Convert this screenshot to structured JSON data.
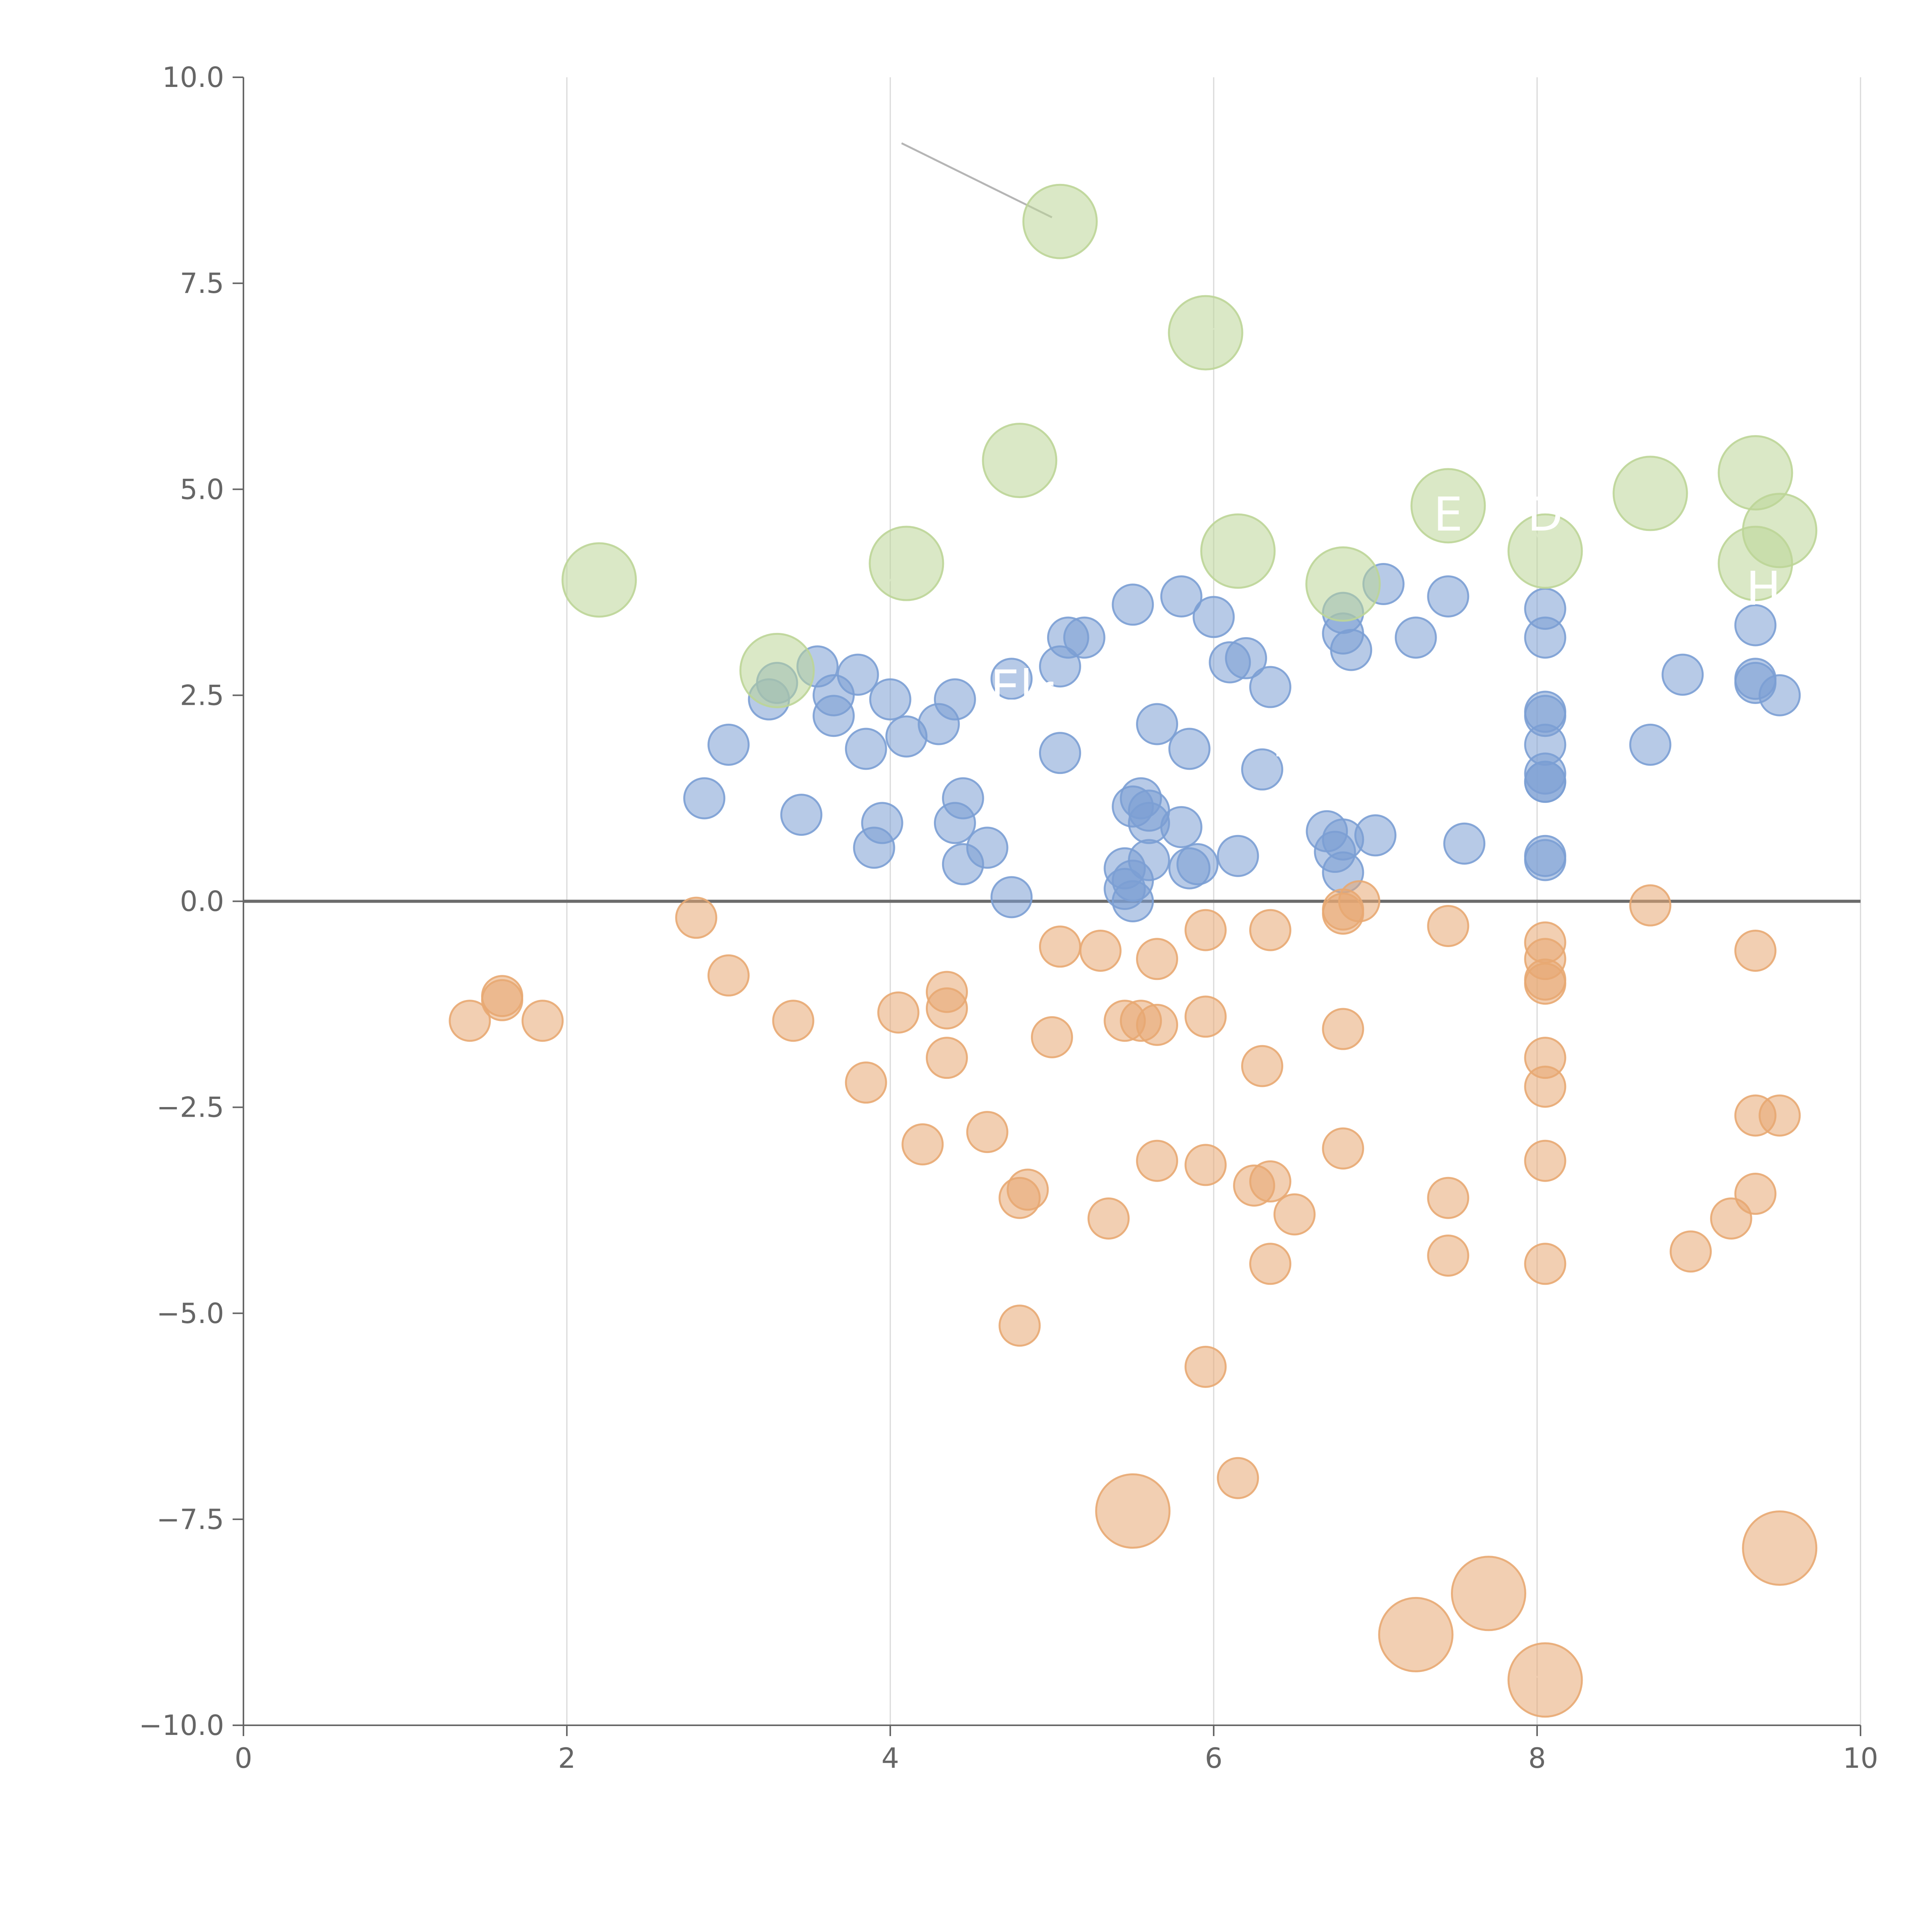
{
  "chart_data": {
    "type": "scatter",
    "title": "",
    "xlabel": "",
    "ylabel": "",
    "xlim": [
      0,
      10
    ],
    "ylim": [
      -10,
      10
    ],
    "x_ticks": [
      "0",
      "2",
      "4",
      "6",
      "8",
      "10"
    ],
    "y_ticks": [
      "−10.0",
      "−7.5",
      "−5.0",
      "−2.5",
      "0.0",
      "2.5",
      "5.0",
      "7.5",
      "10.0"
    ],
    "x_tick_values": [
      0,
      2,
      4,
      6,
      8,
      10
    ],
    "y_tick_values": [
      -10,
      -7.5,
      -5,
      -2.5,
      0,
      2.5,
      5,
      7.5,
      10
    ],
    "vertical_grid": true,
    "horizontal_grid": false,
    "zero_line": true,
    "series": [
      {
        "color": "#7b9fd4",
        "size": "small",
        "points": [
          [
            2.85,
            1.25
          ],
          [
            3.0,
            1.9
          ],
          [
            3.25,
            2.45
          ],
          [
            3.3,
            2.65
          ],
          [
            3.45,
            1.05
          ],
          [
            3.55,
            2.85
          ],
          [
            3.65,
            2.5
          ],
          [
            3.65,
            2.25
          ],
          [
            3.8,
            2.75
          ],
          [
            3.85,
            1.85
          ],
          [
            3.9,
            0.65
          ],
          [
            3.95,
            0.95
          ],
          [
            4.0,
            2.45
          ],
          [
            4.1,
            2.0
          ],
          [
            4.3,
            2.15
          ],
          [
            4.4,
            2.45
          ],
          [
            4.4,
            0.95
          ],
          [
            4.45,
            1.25
          ],
          [
            4.45,
            0.45
          ],
          [
            4.6,
            0.65
          ],
          [
            4.75,
            0.05
          ],
          [
            4.75,
            2.7
          ],
          [
            5.05,
            2.85
          ],
          [
            5.05,
            1.8
          ],
          [
            5.1,
            3.2
          ],
          [
            5.2,
            3.2
          ],
          [
            5.5,
            3.6
          ],
          [
            5.5,
            1.15
          ],
          [
            5.5,
            0.25
          ],
          [
            5.55,
            1.25
          ],
          [
            5.45,
            0.4
          ],
          [
            5.45,
            0.15
          ],
          [
            5.5,
            0.0
          ],
          [
            5.6,
            0.5
          ],
          [
            5.6,
            1.1
          ],
          [
            5.6,
            0.95
          ],
          [
            5.65,
            2.15
          ],
          [
            5.8,
            3.7
          ],
          [
            5.8,
            0.9
          ],
          [
            5.85,
            1.85
          ],
          [
            5.85,
            0.4
          ],
          [
            5.9,
            0.45
          ],
          [
            6.0,
            3.45
          ],
          [
            6.1,
            2.9
          ],
          [
            6.2,
            2.95
          ],
          [
            6.15,
            0.55
          ],
          [
            6.3,
            1.6
          ],
          [
            6.35,
            2.6
          ],
          [
            6.7,
            0.85
          ],
          [
            6.75,
            0.6
          ],
          [
            6.8,
            0.75
          ],
          [
            6.8,
            0.35
          ],
          [
            6.8,
            3.5
          ],
          [
            6.8,
            3.25
          ],
          [
            6.85,
            3.05
          ],
          [
            7.0,
            0.8
          ],
          [
            7.05,
            3.85
          ],
          [
            7.25,
            3.2
          ],
          [
            7.45,
            3.7
          ],
          [
            7.55,
            0.7
          ],
          [
            8.05,
            3.55
          ],
          [
            8.05,
            3.2
          ],
          [
            8.05,
            2.3
          ],
          [
            8.05,
            2.25
          ],
          [
            8.05,
            1.9
          ],
          [
            8.05,
            1.55
          ],
          [
            8.05,
            1.45
          ],
          [
            8.05,
            1.45
          ],
          [
            8.05,
            0.55
          ],
          [
            8.05,
            0.5
          ],
          [
            8.7,
            1.9
          ],
          [
            8.9,
            2.75
          ],
          [
            9.35,
            3.35
          ],
          [
            9.35,
            2.7
          ],
          [
            9.35,
            2.65
          ],
          [
            9.5,
            2.5
          ]
        ]
      },
      {
        "color": "#e8a872",
        "size": "small",
        "points": [
          [
            1.4,
            -1.45
          ],
          [
            1.6,
            -1.15
          ],
          [
            1.6,
            -1.2
          ],
          [
            1.85,
            -1.45
          ],
          [
            2.8,
            -0.2
          ],
          [
            3.0,
            -0.9
          ],
          [
            3.4,
            -1.45
          ],
          [
            3.85,
            -2.2
          ],
          [
            4.05,
            -1.35
          ],
          [
            4.2,
            -2.95
          ],
          [
            4.35,
            -1.1
          ],
          [
            4.35,
            -1.3
          ],
          [
            4.35,
            -1.9
          ],
          [
            4.6,
            -2.8
          ],
          [
            4.8,
            -3.6
          ],
          [
            4.85,
            -3.5
          ],
          [
            4.8,
            -5.15
          ],
          [
            5.0,
            -1.65
          ],
          [
            5.05,
            -0.55
          ],
          [
            5.3,
            -0.6
          ],
          [
            5.35,
            -3.85
          ],
          [
            5.45,
            -1.45
          ],
          [
            5.55,
            -1.45
          ],
          [
            5.65,
            -1.5
          ],
          [
            5.65,
            -0.7
          ],
          [
            5.65,
            -3.15
          ],
          [
            5.95,
            -0.35
          ],
          [
            5.95,
            -1.4
          ],
          [
            5.95,
            -3.2
          ],
          [
            5.95,
            -5.65
          ],
          [
            6.15,
            -7.0
          ],
          [
            6.25,
            -3.45
          ],
          [
            6.3,
            -2.0
          ],
          [
            6.35,
            -0.35
          ],
          [
            6.35,
            -3.4
          ],
          [
            6.35,
            -4.4
          ],
          [
            6.5,
            -3.8
          ],
          [
            6.8,
            -0.1
          ],
          [
            6.8,
            -0.15
          ],
          [
            6.9,
            0.0
          ],
          [
            6.8,
            -1.55
          ],
          [
            6.8,
            -3.0
          ],
          [
            7.45,
            -0.3
          ],
          [
            7.45,
            -3.6
          ],
          [
            7.45,
            -4.3
          ],
          [
            8.05,
            -0.5
          ],
          [
            8.05,
            -0.7
          ],
          [
            8.05,
            -0.95
          ],
          [
            8.05,
            -1.0
          ],
          [
            8.05,
            -1.9
          ],
          [
            8.05,
            -2.25
          ],
          [
            8.05,
            -3.15
          ],
          [
            8.05,
            -4.4
          ],
          [
            8.7,
            -0.05
          ],
          [
            8.95,
            -4.25
          ],
          [
            9.2,
            -3.85
          ],
          [
            9.35,
            -0.6
          ],
          [
            9.35,
            -2.6
          ],
          [
            9.35,
            -3.55
          ],
          [
            9.5,
            -2.6
          ]
        ]
      },
      {
        "color": "#bcd597",
        "size": "large",
        "points": [
          [
            2.2,
            3.9
          ],
          [
            3.3,
            2.8
          ],
          [
            4.1,
            4.1
          ],
          [
            4.8,
            5.35
          ],
          [
            5.05,
            8.25
          ],
          [
            5.95,
            6.9
          ],
          [
            6.15,
            4.25
          ],
          [
            6.8,
            3.85
          ],
          [
            7.45,
            4.8
          ],
          [
            8.05,
            4.25
          ],
          [
            8.7,
            4.95
          ],
          [
            9.35,
            5.2
          ],
          [
            9.5,
            4.5
          ],
          [
            9.35,
            4.1
          ]
        ]
      },
      {
        "color": "#e8a872",
        "size": "large",
        "points": [
          [
            5.5,
            -7.4
          ],
          [
            7.25,
            -8.9
          ],
          [
            7.7,
            -8.4
          ],
          [
            8.05,
            -9.45
          ],
          [
            9.5,
            -7.85
          ]
        ]
      }
    ],
    "annotations": [
      {
        "x": 4.75,
        "y": 2.4,
        "text": "El"
      },
      {
        "x": 4.95,
        "y": 2.35,
        "text": "r"
      },
      {
        "x": 7.45,
        "y": 4.5,
        "text": "E"
      },
      {
        "x": 8.05,
        "y": 4.5,
        "text": "D"
      },
      {
        "x": 9.4,
        "y": 3.6,
        "text": "H"
      },
      {
        "x": 6.4,
        "y": 1.5,
        "text": "'"
      }
    ]
  }
}
